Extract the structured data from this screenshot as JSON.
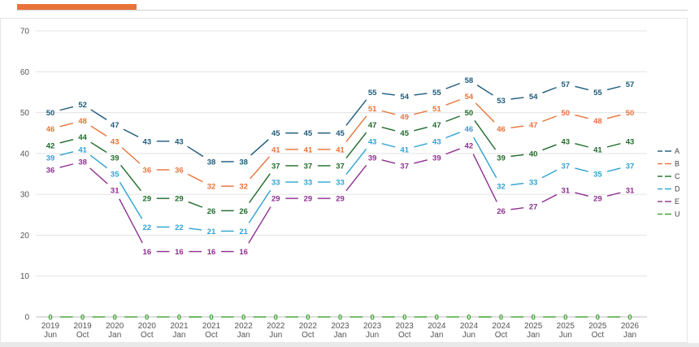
{
  "header": {
    "accent_color": "#e8733a"
  },
  "chart_data": {
    "type": "line",
    "ylim": [
      0,
      70
    ],
    "yticks": [
      0,
      10,
      20,
      30,
      40,
      50,
      60,
      70
    ],
    "grid": true,
    "legend_position": "right",
    "x": [
      [
        "2019",
        "Jun"
      ],
      [
        "2019",
        "Oct"
      ],
      [
        "2020",
        "Jan"
      ],
      [
        "2020",
        "Oct"
      ],
      [
        "2021",
        "Jan"
      ],
      [
        "2021",
        "Oct"
      ],
      [
        "2022",
        "Jan"
      ],
      [
        "2022",
        "Jun"
      ],
      [
        "2022",
        "Oct"
      ],
      [
        "2023",
        "Jan"
      ],
      [
        "2023",
        "Jun"
      ],
      [
        "2023",
        "Oct"
      ],
      [
        "2024",
        "Jan"
      ],
      [
        "2024",
        "Jun"
      ],
      [
        "2024",
        "Oct"
      ],
      [
        "2025",
        "Jan"
      ],
      [
        "2025",
        "Jun"
      ],
      [
        "2025",
        "Oct"
      ],
      [
        "2026",
        "Jan"
      ]
    ],
    "series": [
      {
        "name": "A",
        "color": "#1d5a7a",
        "values": [
          50,
          52,
          47,
          43,
          43,
          38,
          38,
          45,
          45,
          45,
          55,
          54,
          55,
          58,
          53,
          54,
          57,
          55,
          57
        ]
      },
      {
        "name": "B",
        "color": "#e8733a",
        "values": [
          46,
          48,
          43,
          36,
          36,
          32,
          32,
          41,
          41,
          41,
          51,
          49,
          51,
          54,
          46,
          47,
          50,
          48,
          50
        ]
      },
      {
        "name": "C",
        "color": "#1f6b2a",
        "values": [
          42,
          44,
          39,
          29,
          29,
          26,
          26,
          37,
          37,
          37,
          47,
          45,
          47,
          50,
          39,
          40,
          43,
          41,
          43
        ]
      },
      {
        "name": "D",
        "color": "#2ea3d1",
        "values": [
          39,
          41,
          35,
          22,
          22,
          21,
          21,
          33,
          33,
          33,
          43,
          41,
          43,
          46,
          32,
          33,
          37,
          35,
          37
        ]
      },
      {
        "name": "E",
        "color": "#8e2f8f",
        "values": [
          36,
          38,
          31,
          16,
          16,
          16,
          16,
          29,
          29,
          29,
          39,
          37,
          39,
          42,
          26,
          27,
          31,
          29,
          31
        ]
      },
      {
        "name": "U",
        "color": "#3aa12d",
        "values": [
          0,
          0,
          0,
          0,
          0,
          0,
          0,
          0,
          0,
          0,
          0,
          0,
          0,
          0,
          0,
          0,
          0,
          0,
          0
        ]
      }
    ]
  }
}
